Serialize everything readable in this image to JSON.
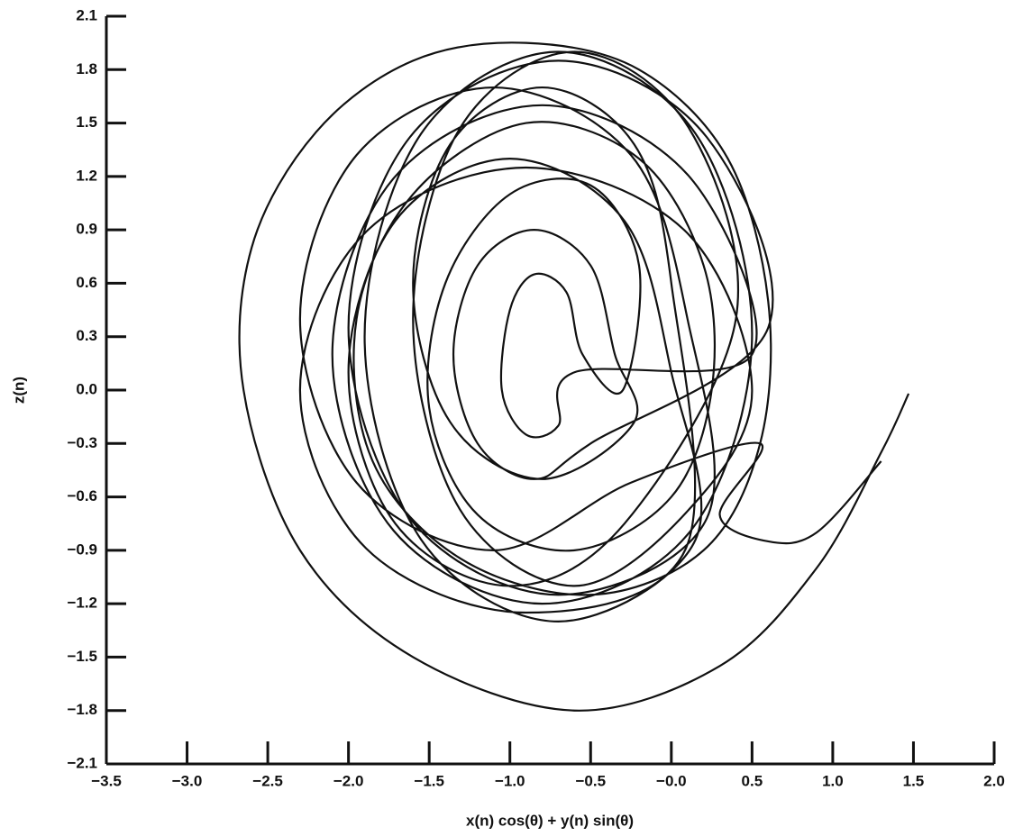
{
  "chart_data": {
    "type": "line",
    "xlabel": "x(n) cos(θ) + y(n) sin(θ)",
    "ylabel": "z(n)",
    "color": "#111111",
    "xlim": [
      -3.5,
      2.0
    ],
    "xticks": [
      {
        "value": -3.5,
        "label": "−3.5"
      },
      {
        "value": -3.0,
        "label": "−3.0"
      },
      {
        "value": -2.5,
        "label": "−2.5"
      },
      {
        "value": -2.0,
        "label": "−2.0"
      },
      {
        "value": -1.5,
        "label": "−1.5"
      },
      {
        "value": -1.0,
        "label": "−1.0"
      },
      {
        "value": -0.5,
        "label": "−0.5"
      },
      {
        "value": 0,
        "label": "−0.0"
      },
      0.5,
      {
        "value": 1.0,
        "label": "1.0"
      },
      1.5,
      {
        "value": 2.0,
        "label": "2.0"
      }
    ],
    "ylim": [
      -2.1,
      2.1
    ],
    "yticks": [
      2.1,
      1.8,
      1.5,
      1.2,
      0.9,
      0.6,
      0.3,
      {
        "value": 0,
        "label": "0.0"
      },
      {
        "value": -0.3,
        "label": "−0.3"
      },
      {
        "value": -0.6,
        "label": "−0.6"
      },
      {
        "value": -0.9,
        "label": "−0.9"
      },
      {
        "value": -1.2,
        "label": "−1.2"
      },
      {
        "value": -1.5,
        "label": "−1.5"
      },
      {
        "value": -1.8,
        "label": "−1.8"
      },
      {
        "value": -2.1,
        "label": "−2.1"
      }
    ],
    "x": [
      1.47,
      1.3,
      0.9,
      0.3,
      -0.6,
      -1.6,
      -2.3,
      -2.65,
      -2.6,
      -2.2,
      -1.6,
      -0.9,
      -0.2,
      0.35,
      0.6,
      0.55,
      0.2,
      -0.5,
      -1.3,
      -1.85,
      -1.95,
      -1.6,
      -0.9,
      -0.2,
      0.2,
      0.25,
      0,
      -0.6,
      -1.2,
      -1.5,
      -1.4,
      -1.0,
      -0.5,
      -0.2,
      -0.3,
      -0.55,
      -0.65,
      -0.85,
      -1.0,
      -1.05,
      -0.9,
      -0.7,
      -0.6,
      0.5,
      0.12,
      -0.8,
      -1.72,
      -2.1,
      -1.72,
      -0.8,
      0.12,
      0.5,
      0.15,
      -0.7,
      -1.55,
      -1.9,
      -1.55,
      -0.7,
      0.15,
      0,
      -0.29,
      -1.0,
      -1.71,
      -2.0,
      -1.71,
      -1.0,
      -0.29,
      0.4,
      0.11,
      -0.6,
      -1.31,
      -1.6,
      -1.31,
      -0.6,
      0.11,
      0.5,
      0.09,
      -0.9,
      -1.89,
      -2.3,
      -1.89,
      -0.9,
      0.09,
      0,
      -0.23,
      -0.8,
      -1.37,
      -1.6,
      -1.37,
      -0.8,
      -0.23,
      -0.35,
      -0.5,
      -0.85,
      -1.2,
      -1.35,
      -1.2,
      -0.85,
      -0.5,
      0.6,
      0.22,
      -0.7,
      -1.62,
      -2.0,
      -1.62,
      -0.7,
      0.22,
      0.1,
      -0.25,
      -1.1,
      -1.95,
      -2.3,
      -1.95,
      -1.1,
      -0.25,
      0.55,
      0.3,
      0.6,
      0.9,
      1.3
    ],
    "values": [
      -0.02,
      -0.35,
      -1.0,
      -1.55,
      -1.8,
      -1.5,
      -0.9,
      0.0,
      0.8,
      1.45,
      1.85,
      1.95,
      1.8,
      1.3,
      0.5,
      -0.3,
      -0.9,
      -1.15,
      -0.95,
      -0.4,
      0.4,
      1.1,
      1.5,
      1.3,
      0.7,
      0.0,
      -0.6,
      -0.9,
      -0.7,
      -0.1,
      0.6,
      1.1,
      1.15,
      0.7,
      0.0,
      0.2,
      0.55,
      0.65,
      0.45,
      0.0,
      -0.25,
      -0.2,
      0.1,
      0.2,
      1.19,
      1.6,
      1.19,
      0.2,
      -0.79,
      -1.2,
      -0.79,
      0.3,
      1.44,
      1.9,
      1.44,
      0.3,
      -0.84,
      -1.3,
      -0.84,
      0.1,
      0.95,
      1.3,
      0.95,
      0.1,
      -0.75,
      -1.1,
      -0.75,
      0.4,
      1.47,
      1.9,
      1.47,
      0.4,
      -0.67,
      -1.1,
      -0.67,
      0,
      0.89,
      1.25,
      0.89,
      0,
      -0.89,
      -1.25,
      -0.89,
      0.6,
      1.38,
      1.7,
      1.38,
      0.6,
      -0.18,
      -0.5,
      -0.18,
      0.2,
      0.7,
      0.9,
      0.7,
      0.2,
      -0.3,
      -0.5,
      -0.3,
      0.35,
      1.42,
      1.85,
      1.42,
      0.35,
      -0.72,
      -1.15,
      -0.72,
      0.4,
      1.32,
      1.7,
      1.32,
      0.4,
      -0.52,
      -0.9,
      -0.52,
      -0.3,
      -0.7,
      -0.85,
      -0.8,
      -0.4
    ]
  }
}
